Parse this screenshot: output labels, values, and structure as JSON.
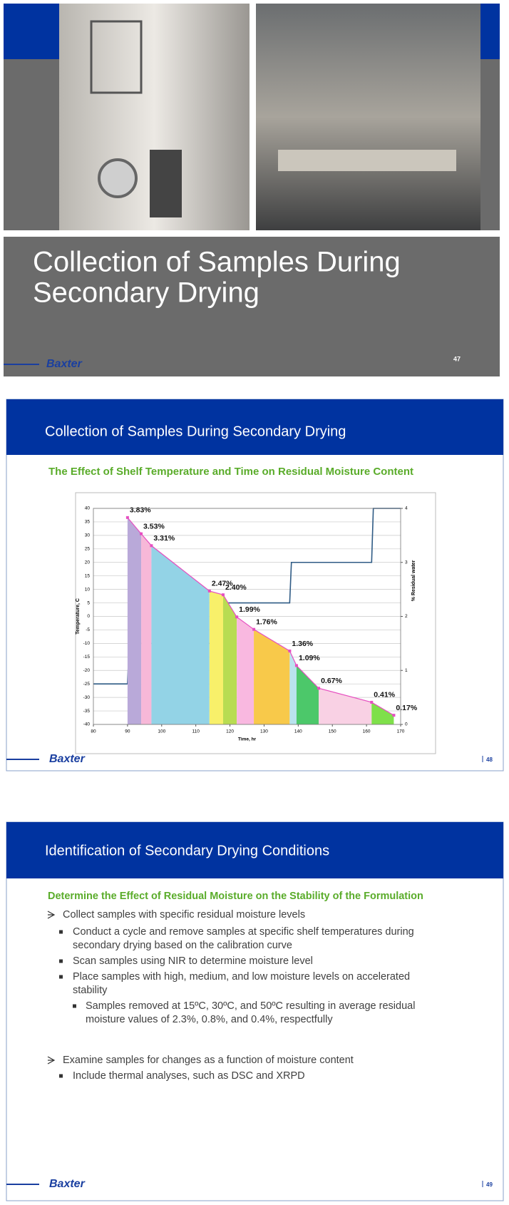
{
  "slides": [
    {
      "title_lines": [
        "Collection of Samples During",
        "Secondary Drying"
      ],
      "logo": "Baxter",
      "page": 47
    },
    {
      "title": "Collection of Samples During Secondary Drying",
      "subtitle": "The Effect of Shelf Temperature and Time on Residual Moisture Content",
      "logo": "Baxter",
      "page": 48
    },
    {
      "title": "Identification of Secondary Drying Conditions",
      "heading": "Determine the Effect of Residual Moisture on the Stability of the Formulation",
      "bullets": [
        {
          "level": 0,
          "lines": [
            "Collect samples with specific residual moisture levels"
          ]
        },
        {
          "level": 1,
          "lines": [
            "Conduct a cycle and remove samples at specific shelf temperatures during",
            "secondary drying based on the calibration curve"
          ]
        },
        {
          "level": 1,
          "lines": [
            "Scan samples using NIR to determine moisture level"
          ]
        },
        {
          "level": 1,
          "lines": [
            "Place samples with high, medium, and low moisture levels on accelerated",
            "stability"
          ]
        },
        {
          "level": 2,
          "lines": [
            "Samples removed at 15ºC, 30ºC, and 50ºC resulting in average residual",
            "moisture values of 2.3%, 0.8%, and 0.4%, respectfully"
          ]
        },
        {
          "level": 0,
          "lines": [
            "Examine samples for changes as a function of moisture content"
          ]
        },
        {
          "level": 1,
          "lines": [
            "Include thermal analyses, such as DSC and XRPD"
          ]
        }
      ],
      "logo": "Baxter",
      "page": 49
    }
  ],
  "chart_data": {
    "type": "line",
    "xlabel": "Time, hr",
    "ylabel": "Temperature, C",
    "y2label": "% Residual water",
    "xlim": [
      80,
      170
    ],
    "xticks": [
      80,
      90,
      100,
      110,
      120,
      130,
      140,
      150,
      160,
      170
    ],
    "ylim": [
      -40,
      40
    ],
    "yticks": [
      -40,
      -35,
      -30,
      -25,
      -20,
      -15,
      -10,
      -5,
      0,
      5,
      10,
      15,
      20,
      25,
      30,
      35,
      40
    ],
    "y2lim": [
      0,
      4
    ],
    "y2ticks": [
      0,
      1,
      2,
      3,
      4
    ],
    "grid": true,
    "series": [
      {
        "color": "#2f5b85",
        "x": [
          80,
          90,
          90.5,
          117,
          118,
          137.5,
          138,
          161.5,
          162,
          170
        ],
        "values": [
          -25,
          -25,
          -10,
          -10,
          5,
          5,
          20,
          20,
          40,
          40
        ]
      },
      {
        "color": "#e64fc0",
        "axis": "y2",
        "x": [
          90,
          94,
          97,
          114,
          118,
          122,
          127,
          137.5,
          139.5,
          146,
          161.5,
          168
        ],
        "values": [
          3.83,
          3.53,
          3.31,
          2.47,
          2.4,
          1.99,
          1.76,
          1.36,
          1.09,
          0.67,
          0.41,
          0.17
        ],
        "value_labels": [
          "3.83%",
          "3.53%",
          "3.31%",
          "2.47%",
          "2.40%",
          "1.99%",
          "1.76%",
          "1.36%",
          "1.09%",
          "0.67%",
          "0.41%",
          "0.17%"
        ],
        "segment_colors": [
          "#b9a9d9",
          "#f7b8d8",
          "#93d3e6",
          "#f8f06a",
          "#b8dc52",
          "#f9b8e0",
          "#f8c94a",
          "#b9e3ee",
          "#4cc86a",
          "#f9d1e4",
          "#7fe04a"
        ]
      }
    ]
  }
}
